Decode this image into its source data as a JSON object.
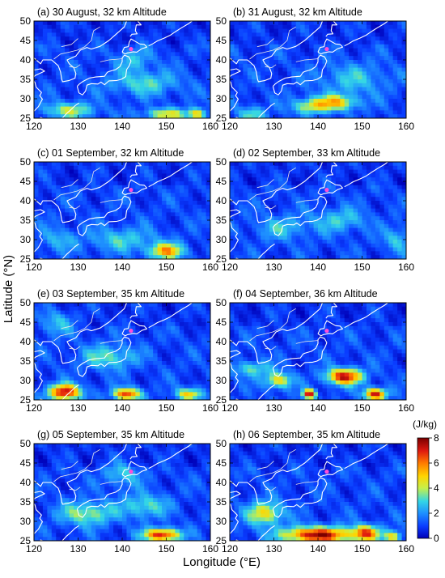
{
  "figure": {
    "panels": [
      {
        "title": "(a) 30 August, 32 km Altitude"
      },
      {
        "title": "(b) 31 August, 32 km Altitude"
      },
      {
        "title": "(c) 01 September, 32 km Altitude"
      },
      {
        "title": "(d) 02 September, 33 km Altitude"
      },
      {
        "title": "(e) 03 September, 35 km Altitude"
      },
      {
        "title": "(f) 04 September, 36 km Altitude"
      },
      {
        "title": "(g) 05 September, 35 km Altitude"
      },
      {
        "title": "(h) 06 September, 35 km Altitude"
      }
    ],
    "y_axis_label": "Latitude (°N)",
    "x_axis_label": "Longitude (°E)",
    "lat_ticks": [
      "50",
      "45",
      "40",
      "35",
      "30",
      "25"
    ],
    "lon_ticks": [
      "120",
      "130",
      "140",
      "150",
      "160"
    ],
    "colorbar": {
      "unit": "(J/kg)",
      "ticks": [
        "8",
        "6",
        "4",
        "2",
        "0"
      ],
      "range": [
        0,
        8
      ]
    },
    "marker": {
      "color": "#ff4fd8",
      "lon": 142,
      "lat": 42.8
    }
  },
  "chart_data": {
    "type": "heatmap",
    "extent": {
      "lon": [
        120,
        160
      ],
      "lat": [
        25,
        50
      ]
    },
    "value_range": [
      0,
      8
    ],
    "unit": "J/kg",
    "panels": [
      {
        "date": "30 August",
        "altitude_km": 32,
        "hotspots": [
          [
            145,
            34,
            3.2,
            8,
            3
          ],
          [
            128,
            27,
            4,
            6,
            2
          ],
          [
            150,
            26,
            4.5,
            5,
            1.5
          ],
          [
            157,
            26,
            5,
            2,
            1.5
          ],
          [
            143,
            40,
            2.8,
            4,
            3
          ]
        ]
      },
      {
        "date": "31 August",
        "altitude_km": 32,
        "hotspots": [
          [
            144,
            29,
            5,
            5,
            2
          ],
          [
            138,
            28,
            4,
            4,
            2
          ],
          [
            148,
            35,
            2.8,
            8,
            4
          ],
          [
            125,
            26,
            3.5,
            3,
            2
          ]
        ]
      },
      {
        "date": "01 September",
        "altitude_km": 32,
        "hotspots": [
          [
            150,
            27,
            5.5,
            4,
            2
          ],
          [
            140,
            30,
            3,
            8,
            3
          ],
          [
            125,
            30,
            2.6,
            4,
            3
          ]
        ]
      },
      {
        "date": "02 September",
        "altitude_km": 33,
        "hotspots": [
          [
            145,
            35,
            3,
            6,
            3
          ],
          [
            132,
            33,
            2.8,
            6,
            3
          ],
          [
            158,
            30,
            3,
            3,
            3
          ]
        ]
      },
      {
        "date": "03 September",
        "altitude_km": 35,
        "hotspots": [
          [
            127,
            27,
            7.8,
            3.5,
            2
          ],
          [
            141,
            26.5,
            7,
            3,
            1.5
          ],
          [
            155,
            26.5,
            5,
            3,
            1.5
          ],
          [
            137,
            36,
            3.5,
            6,
            3
          ],
          [
            125,
            45,
            3,
            4,
            3
          ]
        ]
      },
      {
        "date": "04 September",
        "altitude_km": 36,
        "hotspots": [
          [
            146,
            31,
            7.5,
            4,
            2
          ],
          [
            153,
            26.5,
            7.5,
            2.5,
            1.5
          ],
          [
            138,
            26.5,
            7.5,
            1.5,
            1.2
          ],
          [
            131,
            30,
            5,
            3,
            2
          ],
          [
            125,
            33,
            3.5,
            4,
            2
          ]
        ]
      },
      {
        "date": "05 September",
        "altitude_km": 35,
        "hotspots": [
          [
            149,
            26.5,
            7.5,
            4,
            1.6
          ],
          [
            132,
            32,
            4,
            6,
            3
          ],
          [
            145,
            34,
            3.5,
            5,
            3
          ],
          [
            140,
            42,
            3,
            4,
            3
          ]
        ]
      },
      {
        "date": "06 September",
        "altitude_km": 35,
        "hotspots": [
          [
            140,
            26.5,
            7.8,
            8,
            2
          ],
          [
            128,
            32,
            5,
            4,
            3
          ],
          [
            151,
            27,
            6,
            3,
            2
          ],
          [
            157,
            26,
            5,
            2,
            1.5
          ]
        ]
      }
    ]
  }
}
